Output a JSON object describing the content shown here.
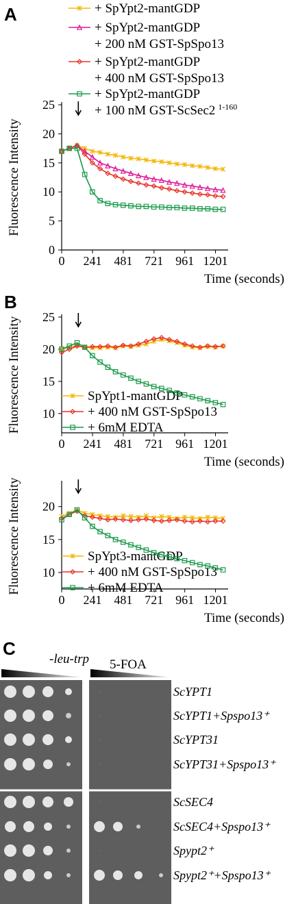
{
  "chart_data": [
    {
      "type": "line",
      "panel_label": "A",
      "xlabel": "Time (seconds)",
      "ylabel": "Fluorescence Intensity",
      "x": [
        0,
        60,
        120,
        180,
        240,
        300,
        360,
        420,
        480,
        540,
        600,
        660,
        720,
        780,
        840,
        900,
        960,
        1020,
        1080,
        1140,
        1200,
        1260
      ],
      "xlim": [
        0,
        1300
      ],
      "xticks": [
        0,
        241,
        481,
        721,
        961,
        1201
      ],
      "ylim": [
        0,
        25
      ],
      "yticks": [
        0,
        5,
        10,
        15,
        20,
        25
      ],
      "series": [
        {
          "name": "+ SpYpt2-mantGDP",
          "color": "#f2b705",
          "marker": "x",
          "values": [
            17,
            17.5,
            18,
            17.5,
            17,
            16.8,
            16.5,
            16.3,
            16,
            15.8,
            15.7,
            15.5,
            15.3,
            15.2,
            15,
            14.8,
            14.7,
            14.5,
            14.4,
            14.2,
            14,
            13.9
          ]
        },
        {
          "name": "+ SpYpt2-mantGDP",
          "detail": "+ 200 nM GST-SpSpo13",
          "color": "#e0189a",
          "marker": "triangle",
          "values": [
            17,
            17.5,
            18,
            17,
            16,
            15,
            14.5,
            14,
            13.6,
            13.2,
            12.8,
            12.5,
            12.2,
            12,
            11.7,
            11.5,
            11.2,
            11,
            10.8,
            10.6,
            10.4,
            10.3
          ]
        },
        {
          "name": "+ SpYpt2-mantGDP",
          "detail": "+ 400 nM GST-SpSpo13",
          "color": "#e8332a",
          "marker": "diamond",
          "values": [
            17,
            17.5,
            18,
            16.5,
            15,
            14,
            13.2,
            12.7,
            12.2,
            11.8,
            11.5,
            11.2,
            11,
            10.7,
            10.5,
            10.2,
            10,
            9.8,
            9.6,
            9.5,
            9.3,
            9.2
          ]
        },
        {
          "name": "+ SpYpt2-mantGDP",
          "detail": "+ 100 nM GST-ScSec2",
          "detail_sup": "1-160",
          "color": "#1a9a4a",
          "marker": "square",
          "values": [
            17,
            17.5,
            17.5,
            13,
            10,
            8.5,
            8,
            7.8,
            7.7,
            7.6,
            7.5,
            7.5,
            7.4,
            7.4,
            7.3,
            7.3,
            7.2,
            7.2,
            7.1,
            7.1,
            7,
            7
          ]
        }
      ]
    },
    {
      "type": "line",
      "panel_label": "B",
      "xlabel": "Time (seconds)",
      "ylabel": "Fluorescence Intensity",
      "x": [
        0,
        60,
        120,
        180,
        240,
        300,
        360,
        420,
        480,
        540,
        600,
        660,
        720,
        780,
        840,
        900,
        960,
        1020,
        1080,
        1140,
        1200,
        1260
      ],
      "xlim": [
        0,
        1300
      ],
      "xticks": [
        0,
        241,
        481,
        721,
        961,
        1201
      ],
      "ylim": [
        7,
        25
      ],
      "yticks": [
        10,
        15,
        20,
        25
      ],
      "series": [
        {
          "name": "SpYpt1-mantGDP",
          "color": "#f2b705",
          "marker": "x",
          "values": [
            20,
            20.3,
            20.6,
            20.3,
            20.2,
            20.2,
            20.3,
            20.2,
            20.5,
            20.4,
            20.6,
            20.8,
            21.2,
            21.5,
            21.3,
            21,
            20.6,
            20.3,
            20.2,
            20.4,
            20.3,
            20.5
          ]
        },
        {
          "name": "+ 400 nM GST-SpSpo13",
          "color": "#e8332a",
          "marker": "diamond",
          "values": [
            19.5,
            20,
            20.5,
            20.3,
            20.4,
            20.4,
            20.5,
            20.3,
            20.6,
            20.5,
            20.8,
            21.2,
            21.6,
            21.8,
            21.5,
            21.2,
            20.8,
            20.5,
            20.3,
            20.5,
            20.4,
            20.5
          ]
        },
        {
          "name": "+ 6mM EDTA",
          "color": "#1a9a4a",
          "marker": "square",
          "values": [
            20,
            20.5,
            21,
            20.3,
            19,
            18,
            17.2,
            16.5,
            16,
            15.5,
            15,
            14.6,
            14.2,
            13.9,
            13.6,
            13.2,
            12.9,
            12.6,
            12.3,
            12,
            11.7,
            11.4
          ]
        }
      ]
    },
    {
      "type": "line",
      "xlabel": "Time (seconds)",
      "ylabel": "Fluorescence Intensity",
      "x": [
        0,
        60,
        120,
        180,
        240,
        300,
        360,
        420,
        480,
        540,
        600,
        660,
        720,
        780,
        840,
        900,
        960,
        1020,
        1080,
        1140,
        1200,
        1260
      ],
      "xlim": [
        0,
        1300
      ],
      "xticks": [
        0,
        241,
        481,
        721,
        961,
        1201
      ],
      "ylim": [
        7.5,
        23.5
      ],
      "yticks": [
        10,
        15,
        20
      ],
      "series": [
        {
          "name": "SpYpt3-mantGDP",
          "color": "#f2b705",
          "marker": "x",
          "values": [
            18.5,
            19,
            19.5,
            19,
            18.8,
            18.6,
            18.5,
            18.4,
            18.6,
            18.5,
            18.4,
            18.6,
            18.3,
            18.5,
            18.4,
            18.2,
            18.4,
            18.3,
            18.2,
            18.4,
            18.3,
            18.2
          ]
        },
        {
          "name": "+ 400 nM GST-SpSpo13",
          "color": "#e8332a",
          "marker": "diamond",
          "values": [
            18.2,
            18.8,
            19.3,
            18.6,
            18.4,
            18.2,
            18,
            18.1,
            18,
            17.9,
            18,
            18.1,
            17.9,
            17.8,
            17.9,
            18,
            17.8,
            17.7,
            17.8,
            17.7,
            17.8,
            17.8
          ]
        },
        {
          "name": "+ 6mM EDTA",
          "color": "#1a9a4a",
          "marker": "square",
          "values": [
            18,
            18.8,
            19.5,
            18.3,
            17,
            16.2,
            15.6,
            15,
            14.6,
            14.2,
            13.8,
            13.4,
            13,
            12.7,
            12.4,
            12.1,
            11.8,
            11.5,
            11.2,
            11,
            10.7,
            10.4
          ]
        }
      ]
    }
  ],
  "panel_c": {
    "label": "C",
    "plates": [
      "-leu-trp",
      "5-FOA"
    ],
    "strains": [
      "ScYPT1",
      "ScYPT1+Spspo13⁺",
      "ScYPT31",
      "ScYPT31+Spspo13⁺",
      "ScSEC4",
      "ScSEC4+Spspo13⁺",
      "Spypt2⁺",
      "Spypt2⁺+Spspo13⁺"
    ]
  }
}
